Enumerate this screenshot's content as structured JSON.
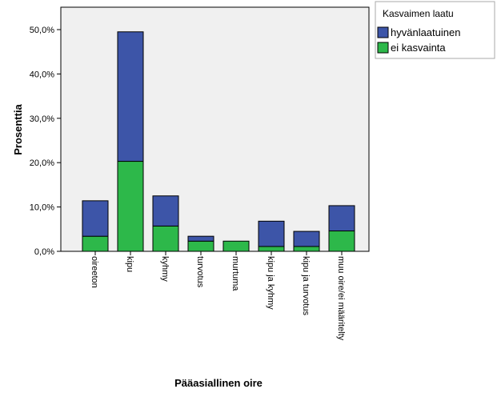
{
  "chart_data": {
    "type": "bar",
    "stacked": true,
    "categories": [
      "oireeton",
      "kipu",
      "kyhmy",
      "turvotus",
      "murtuma",
      "kipu ja kyhmy",
      "kipu ja turvotus",
      "muu oire/ei määritelty"
    ],
    "series": [
      {
        "name": "ei kasvainta",
        "color": "#2db84a",
        "values": [
          3.4,
          20.3,
          5.7,
          2.3,
          2.3,
          1.1,
          1.1,
          4.6
        ]
      },
      {
        "name": "hyvänlaatuinen",
        "color": "#3d55a8",
        "values": [
          8.0,
          29.2,
          6.8,
          1.1,
          0.0,
          5.7,
          3.4,
          5.7
        ]
      }
    ],
    "ylim": [
      0,
      55
    ],
    "yticks": [
      "0,0%",
      "10,0%",
      "20,0%",
      "30,0%",
      "40,0%",
      "50,0%"
    ],
    "ytick_values": [
      0,
      10,
      20,
      30,
      40,
      50
    ],
    "xlabel": "Pääasiallinen oire",
    "ylabel": "Prosenttia",
    "legend_title": "Kasvaimen laatu",
    "legend_order": [
      "hyvänlaatuinen",
      "ei kasvainta"
    ],
    "legend_position": "right",
    "plot_background": "#f0f0f0",
    "grid": false
  }
}
